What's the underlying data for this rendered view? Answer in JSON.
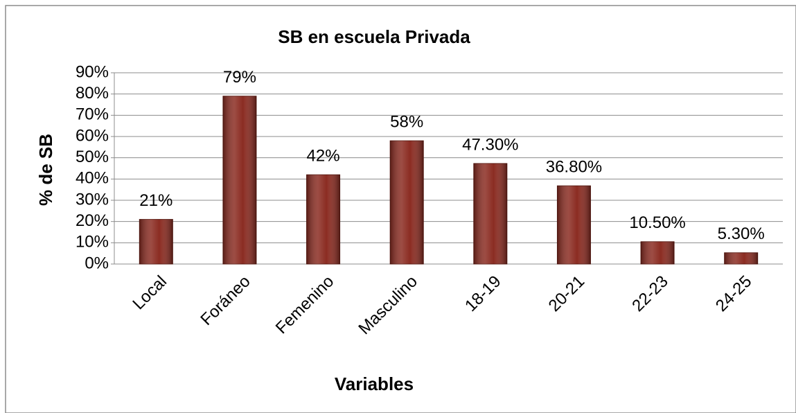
{
  "chart_data": {
    "type": "bar",
    "title": "SB en escuela Privada",
    "x_label": "Variables",
    "y_label": "% de SB",
    "categories": [
      "Local",
      "Foráneo",
      "Femenino",
      "Masculino",
      "18-19",
      "20-21",
      "22-23",
      "24-25"
    ],
    "values": [
      21,
      79,
      42,
      58,
      47.3,
      36.8,
      10.5,
      5.3
    ],
    "value_labels": [
      "21%",
      "79%",
      "42%",
      "58%",
      "47.30%",
      "36.80%",
      "10.50%",
      "5.30%"
    ],
    "color": "#8b2c22",
    "ylim": [
      0,
      90
    ],
    "yticks": [
      {
        "value": 0,
        "label": "0%"
      },
      {
        "value": 10,
        "label": "10%"
      },
      {
        "value": 20,
        "label": "20%"
      },
      {
        "value": 30,
        "label": "30%"
      },
      {
        "value": 40,
        "label": "40%"
      },
      {
        "value": 50,
        "label": "50%"
      },
      {
        "value": 60,
        "label": "60%"
      },
      {
        "value": 70,
        "label": "70%"
      },
      {
        "value": 80,
        "label": "80%"
      },
      {
        "value": 90,
        "label": "90%"
      }
    ],
    "grid": true
  }
}
